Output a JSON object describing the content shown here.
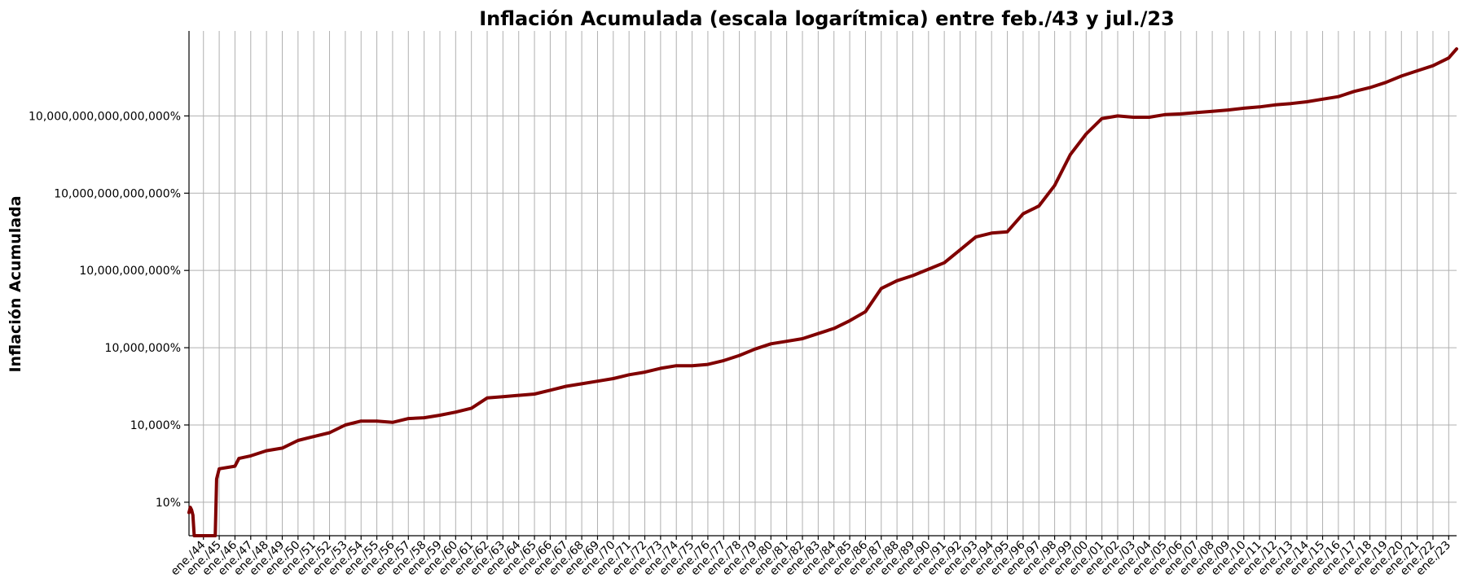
{
  "colors": {
    "series": "#800000",
    "grid": "#b0b0b0",
    "axis": "#000000"
  },
  "chart_data": {
    "type": "line",
    "title": "Inflación Acumulada (escala logarítmica) entre feb./43 y jul./23",
    "xlabel": "",
    "ylabel": "Inflación Acumulada",
    "y_scale": "log",
    "grid": true,
    "legend": "none",
    "x_range": [
      "feb./43",
      "jul./23"
    ],
    "y_range_log10_percent": [
      -0.3,
      19.3
    ],
    "y_ticks": [
      {
        "log10": 1,
        "label": "10%"
      },
      {
        "log10": 4,
        "label": "10,000%"
      },
      {
        "log10": 7,
        "label": "10,000,000%"
      },
      {
        "log10": 10,
        "label": "10,000,000,000%"
      },
      {
        "log10": 13,
        "label": "10,000,000,000,000%"
      },
      {
        "log10": 16,
        "label": "10,000,000,000,000,000%"
      }
    ],
    "x_ticks": [
      "ene./44",
      "ene./45",
      "ene./46",
      "ene./47",
      "ene./48",
      "ene./49",
      "ene./50",
      "ene./51",
      "ene./52",
      "ene./53",
      "ene./54",
      "ene./55",
      "ene./56",
      "ene./57",
      "ene./58",
      "ene./59",
      "ene./60",
      "ene./61",
      "ene./62",
      "ene./63",
      "ene./64",
      "ene./65",
      "ene./66",
      "ene./67",
      "ene./68",
      "ene./69",
      "ene./70",
      "ene./71",
      "ene./72",
      "ene./73",
      "ene./74",
      "ene./75",
      "ene./76",
      "ene./77",
      "ene./78",
      "ene./79",
      "ene./80",
      "ene./81",
      "ene./82",
      "ene./83",
      "ene./84",
      "ene./85",
      "ene./86",
      "ene./87",
      "ene./88",
      "ene./89",
      "ene./90",
      "ene./91",
      "ene./92",
      "ene./93",
      "ene./94",
      "ene./95",
      "ene./96",
      "ene./97",
      "ene./98",
      "ene./99",
      "ene./00",
      "ene./01",
      "ene./02",
      "ene./03",
      "ene./04",
      "ene./05",
      "ene./06",
      "ene./07",
      "ene./08",
      "ene./09",
      "ene./10",
      "ene./11",
      "ene./12",
      "ene./13",
      "ene./14",
      "ene./15",
      "ene./16",
      "ene./17",
      "ene./18",
      "ene./19",
      "ene./20",
      "ene./21",
      "ene./22",
      "ene./23"
    ],
    "series": [
      {
        "name": "",
        "points": [
          {
            "x": "feb./43",
            "y_log10": 0.6
          },
          {
            "x": "mar./43",
            "y_log10": 0.8
          },
          {
            "x": "abr./43",
            "y_log10": 0.7
          },
          {
            "x": "may./43",
            "y_log10": 0.5
          },
          {
            "x": "jun./43",
            "y_log10": -0.3
          },
          {
            "x": "oct./44",
            "y_log10": -0.3
          },
          {
            "x": "nov./44",
            "y_log10": 1.9
          },
          {
            "x": "ene./45",
            "y_log10": 2.3
          },
          {
            "x": "ene./46",
            "y_log10": 2.4
          },
          {
            "x": "abr./46",
            "y_log10": 2.7
          },
          {
            "x": "ene./47",
            "y_log10": 2.8
          },
          {
            "x": "ene./48",
            "y_log10": 3.0
          },
          {
            "x": "ene./49",
            "y_log10": 3.1
          },
          {
            "x": "ene./50",
            "y_log10": 3.4
          },
          {
            "x": "ene./51",
            "y_log10": 3.55
          },
          {
            "x": "ene./52",
            "y_log10": 3.7
          },
          {
            "x": "ene./53",
            "y_log10": 4.0
          },
          {
            "x": "ene./54",
            "y_log10": 4.15
          },
          {
            "x": "ene./55",
            "y_log10": 4.15
          },
          {
            "x": "ene./56",
            "y_log10": 4.1
          },
          {
            "x": "ene./57",
            "y_log10": 4.25
          },
          {
            "x": "ene./58",
            "y_log10": 4.28
          },
          {
            "x": "ene./59",
            "y_log10": 4.38
          },
          {
            "x": "ene./60",
            "y_log10": 4.5
          },
          {
            "x": "ene./61",
            "y_log10": 4.65
          },
          {
            "x": "ene./62",
            "y_log10": 5.05
          },
          {
            "x": "ene./63",
            "y_log10": 5.1
          },
          {
            "x": "ene./64",
            "y_log10": 5.15
          },
          {
            "x": "ene./65",
            "y_log10": 5.2
          },
          {
            "x": "ene./66",
            "y_log10": 5.35
          },
          {
            "x": "ene./67",
            "y_log10": 5.5
          },
          {
            "x": "ene./68",
            "y_log10": 5.6
          },
          {
            "x": "ene./69",
            "y_log10": 5.7
          },
          {
            "x": "ene./70",
            "y_log10": 5.8
          },
          {
            "x": "ene./71",
            "y_log10": 5.95
          },
          {
            "x": "ene./72",
            "y_log10": 6.05
          },
          {
            "x": "ene./73",
            "y_log10": 6.2
          },
          {
            "x": "ene./74",
            "y_log10": 6.3
          },
          {
            "x": "ene./75",
            "y_log10": 6.3
          },
          {
            "x": "ene./76",
            "y_log10": 6.35
          },
          {
            "x": "ene./77",
            "y_log10": 6.5
          },
          {
            "x": "ene./78",
            "y_log10": 6.7
          },
          {
            "x": "ene./79",
            "y_log10": 6.95
          },
          {
            "x": "ene./80",
            "y_log10": 7.15
          },
          {
            "x": "ene./81",
            "y_log10": 7.25
          },
          {
            "x": "ene./82",
            "y_log10": 7.35
          },
          {
            "x": "ene./83",
            "y_log10": 7.55
          },
          {
            "x": "ene./84",
            "y_log10": 7.75
          },
          {
            "x": "ene./85",
            "y_log10": 8.05
          },
          {
            "x": "ene./86",
            "y_log10": 8.4
          },
          {
            "x": "ene./87",
            "y_log10": 9.3
          },
          {
            "x": "ene./88",
            "y_log10": 9.6
          },
          {
            "x": "ene./89",
            "y_log10": 9.8
          },
          {
            "x": "ene./90",
            "y_log10": 10.05
          },
          {
            "x": "ene./91",
            "y_log10": 10.3
          },
          {
            "x": "ene./92",
            "y_log10": 10.8
          },
          {
            "x": "ene./93",
            "y_log10": 11.3
          },
          {
            "x": "ene./94",
            "y_log10": 11.45
          },
          {
            "x": "ene./95",
            "y_log10": 11.5
          },
          {
            "x": "ene./96",
            "y_log10": 12.2
          },
          {
            "x": "ene./97",
            "y_log10": 12.5
          },
          {
            "x": "ene./98",
            "y_log10": 13.3
          },
          {
            "x": "ene./99",
            "y_log10": 14.5
          },
          {
            "x": "ene./00",
            "y_log10": 15.3
          },
          {
            "x": "ene./01",
            "y_log10": 15.9
          },
          {
            "x": "ene./02",
            "y_log10": 16.0
          },
          {
            "x": "ene./03",
            "y_log10": 15.95
          },
          {
            "x": "ene./04",
            "y_log10": 15.95
          },
          {
            "x": "ene./05",
            "y_log10": 16.05
          },
          {
            "x": "ene./06",
            "y_log10": 16.08
          },
          {
            "x": "ene./07",
            "y_log10": 16.13
          },
          {
            "x": "ene./08",
            "y_log10": 16.18
          },
          {
            "x": "ene./09",
            "y_log10": 16.23
          },
          {
            "x": "ene./10",
            "y_log10": 16.3
          },
          {
            "x": "ene./11",
            "y_log10": 16.35
          },
          {
            "x": "ene./12",
            "y_log10": 16.43
          },
          {
            "x": "ene./13",
            "y_log10": 16.48
          },
          {
            "x": "ene./14",
            "y_log10": 16.55
          },
          {
            "x": "ene./15",
            "y_log10": 16.65
          },
          {
            "x": "ene./16",
            "y_log10": 16.75
          },
          {
            "x": "ene./17",
            "y_log10": 16.95
          },
          {
            "x": "ene./18",
            "y_log10": 17.1
          },
          {
            "x": "ene./19",
            "y_log10": 17.3
          },
          {
            "x": "ene./20",
            "y_log10": 17.55
          },
          {
            "x": "ene./21",
            "y_log10": 17.75
          },
          {
            "x": "ene./22",
            "y_log10": 17.95
          },
          {
            "x": "ene./23",
            "y_log10": 18.25
          },
          {
            "x": "jul./23",
            "y_log10": 18.6
          }
        ]
      }
    ]
  }
}
